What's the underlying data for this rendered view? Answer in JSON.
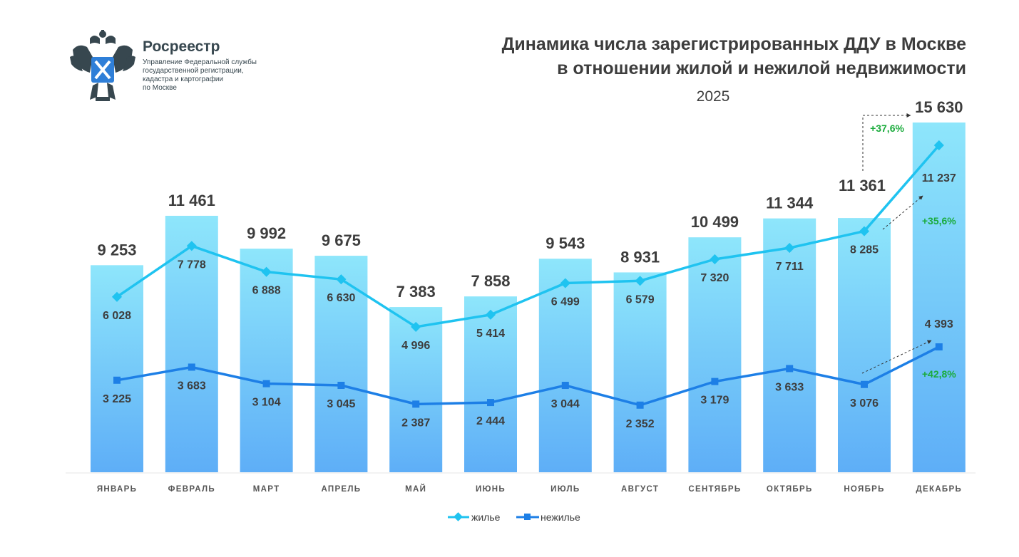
{
  "logo": {
    "name": "Росреестр",
    "lines": [
      "Управление Федеральной службы",
      "государственной регистрации,",
      "кадастра и картографии",
      "по Москве"
    ]
  },
  "colors": {
    "bar_top": "#8ee6fb",
    "bar_bottom": "#5eaef7",
    "residential": "#1fc3f0",
    "nonresidential": "#1d7fe6",
    "growth": "#1aab3c",
    "text": "#3d3d3d"
  },
  "chart_data": {
    "type": "bar",
    "title": "Динамика числа зарегистрированных ДДУ в Москве",
    "title_line2": "в отношении жилой и нежилой недвижимости",
    "subtitle": "2025",
    "categories": [
      "ЯНВАРЬ",
      "ФЕВРАЛЬ",
      "МАРТ",
      "АПРЕЛЬ",
      "МАЙ",
      "ИЮНЬ",
      "ИЮЛЬ",
      "АВГУСТ",
      "СЕНТЯБРЬ",
      "ОКТЯБРЬ",
      "НОЯБРЬ",
      "ДЕКАБРЬ"
    ],
    "totals": [
      9253,
      11461,
      9992,
      9675,
      7383,
      7858,
      9543,
      8931,
      10499,
      11344,
      11361,
      15630
    ],
    "total_labels": [
      "9 253",
      "11 461",
      "9 992",
      "9 675",
      "7 383",
      "7 858",
      "9 543",
      "8 931",
      "10 499",
      "11 344",
      "11 361",
      "15 630"
    ],
    "series": [
      {
        "name": "жилье",
        "values": [
          6028,
          7778,
          6888,
          6630,
          4996,
          5414,
          6499,
          6579,
          7320,
          7711,
          8285,
          11237
        ],
        "labels": [
          "6 028",
          "7 778",
          "6 888",
          "6 630",
          "4 996",
          "5 414",
          "6 499",
          "6 579",
          "7 320",
          "7 711",
          "8 285",
          "11 237"
        ]
      },
      {
        "name": "нежилье",
        "values": [
          3225,
          3683,
          3104,
          3045,
          2387,
          2444,
          3044,
          2352,
          3179,
          3633,
          3076,
          4393
        ],
        "labels": [
          "3 225",
          "3 683",
          "3 104",
          "3 045",
          "2 387",
          "2 444",
          "3 044",
          "2 352",
          "3 179",
          "3 633",
          "3 076",
          "4 393"
        ]
      }
    ],
    "annotations": [
      {
        "text": "+37,6%",
        "target": "totals"
      },
      {
        "text": "+35,6%",
        "target": "жилье"
      },
      {
        "text": "+42,8%",
        "target": "нежилье"
      }
    ],
    "legend": [
      "жилье",
      "нежилье"
    ],
    "legend_position": "bottom-center",
    "ylim": [
      0,
      16000
    ],
    "grid": false
  }
}
